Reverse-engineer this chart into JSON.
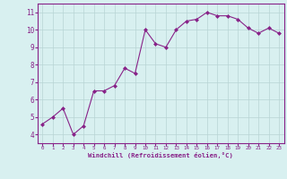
{
  "x": [
    0,
    1,
    2,
    3,
    4,
    5,
    6,
    7,
    8,
    9,
    10,
    11,
    12,
    13,
    14,
    15,
    16,
    17,
    18,
    19,
    20,
    21,
    22,
    23
  ],
  "y": [
    4.6,
    5.0,
    5.5,
    4.0,
    4.5,
    6.5,
    6.5,
    6.8,
    7.8,
    7.5,
    10.0,
    9.2,
    9.0,
    10.0,
    10.5,
    10.6,
    11.0,
    10.8,
    10.8,
    10.6,
    10.1,
    9.8,
    10.1,
    9.8
  ],
  "line_color": "#882288",
  "marker": "D",
  "marker_size": 2,
  "bg_color": "#d8f0f0",
  "grid_color": "#b8d4d4",
  "xlabel": "Windchill (Refroidissement éolien,°C)",
  "xlabel_color": "#882288",
  "tick_color": "#882288",
  "ylim": [
    3.5,
    11.5
  ],
  "xlim": [
    -0.5,
    23.5
  ],
  "yticks": [
    4,
    5,
    6,
    7,
    8,
    9,
    10,
    11
  ],
  "xticks": [
    0,
    1,
    2,
    3,
    4,
    5,
    6,
    7,
    8,
    9,
    10,
    11,
    12,
    13,
    14,
    15,
    16,
    17,
    18,
    19,
    20,
    21,
    22,
    23
  ],
  "spine_color": "#882288",
  "bg_fig_color": "#d8f0f0"
}
